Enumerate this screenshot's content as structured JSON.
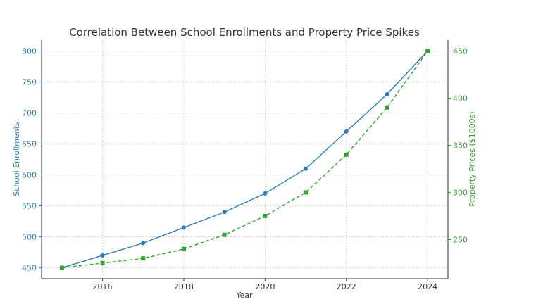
{
  "chart_data": {
    "type": "line",
    "title": "Correlation Between School Enrollments and Property Price Spikes",
    "xlabel": "Year",
    "x": [
      2015,
      2016,
      2017,
      2018,
      2019,
      2020,
      2021,
      2022,
      2023,
      2024
    ],
    "xticks": [
      2016,
      2018,
      2020,
      2022,
      2024
    ],
    "xlim": [
      2014.5,
      2024.5
    ],
    "series": [
      {
        "name": "School Enrollments",
        "axis": "left",
        "color": "#2e7eb3",
        "linestyle": "solid",
        "marker": "circle",
        "values": [
          450,
          470,
          490,
          515,
          540,
          570,
          610,
          670,
          730,
          800
        ]
      },
      {
        "name": "Property Prices ($1000s)",
        "axis": "right",
        "color": "#35a035",
        "linestyle": "dashed",
        "marker": "square",
        "values": [
          220,
          225,
          230,
          240,
          255,
          275,
          300,
          340,
          390,
          450
        ]
      }
    ],
    "left_axis": {
      "label": "School Enrollments",
      "color": "#2e7eb3",
      "ylim": [
        432.5,
        817.5
      ],
      "ticks": [
        450,
        500,
        550,
        600,
        650,
        700,
        750,
        800
      ]
    },
    "right_axis": {
      "label": "Property Prices ($1000s)",
      "color": "#35a035",
      "ylim": [
        208.5,
        461.5
      ],
      "ticks": [
        250,
        300,
        350,
        400,
        450
      ]
    },
    "grid": true
  }
}
